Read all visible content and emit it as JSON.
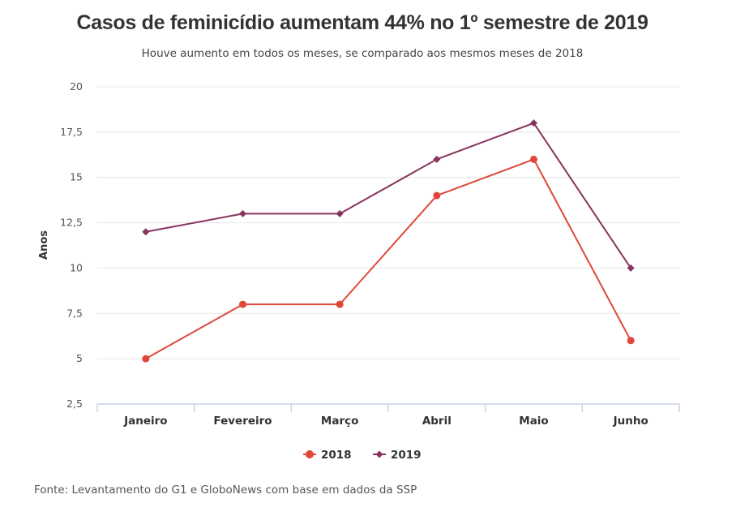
{
  "chart_data": {
    "type": "line",
    "title": "Casos de feminicídio aumentam 44% no 1º semestre de 2019",
    "subtitle": "Houve aumento em todos os meses, se comparado aos mesmos meses de 2018",
    "xlabel": "",
    "ylabel": "Anos",
    "categories": [
      "Janeiro",
      "Fevereiro",
      "Março",
      "Abril",
      "Maio",
      "Junho"
    ],
    "ylim": [
      2.5,
      20
    ],
    "yticks": [
      2.5,
      5,
      7.5,
      10,
      12.5,
      15,
      17.5,
      20
    ],
    "ytick_labels": [
      "2,5",
      "5",
      "7,5",
      "10",
      "12,5",
      "15",
      "17,5",
      "20"
    ],
    "grid": true,
    "legend_position": "bottom",
    "series": [
      {
        "name": "2018",
        "values": [
          5,
          8,
          8,
          14,
          16,
          6
        ],
        "color": "#e0473a",
        "marker": "circle"
      },
      {
        "name": "2019",
        "values": [
          12,
          13,
          13,
          16,
          18,
          10
        ],
        "color": "#87345f",
        "marker": "diamond"
      }
    ],
    "source": "Fonte: Levantamento do G1 e GloboNews com base em dados da SSP"
  }
}
